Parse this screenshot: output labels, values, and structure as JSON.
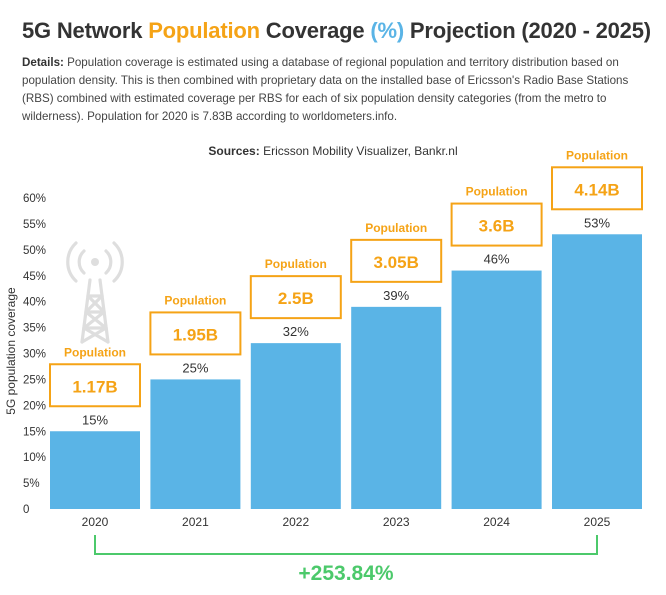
{
  "header": {
    "title_part1": "5G Network",
    "title_highlight": "Population",
    "title_part2": "Coverage",
    "title_percent": "(%)",
    "title_part3": "Projection (2020 - 2025)"
  },
  "details": {
    "label": "Details:",
    "text": "Population coverage is estimated using a database of regional population and territory distribution based on population density. This is then combined with proprietary data on the installed base of Ericsson's Radio Base Stations (RBS) combined with estimated coverage per RBS for each of six population density categories (from the metro to wilderness). Population for 2020 is 7.83B according to worldometers.info."
  },
  "sources": {
    "label": "Sources:",
    "text": "Ericsson Mobility Visualizer, Bankr.nl"
  },
  "colors": {
    "bar": "#5ab4e6",
    "accent": "#f5a316",
    "growth": "#4cc96b"
  },
  "icon": "radio-tower-icon",
  "chart_data": {
    "type": "bar",
    "ylabel": "5G population coverage",
    "categories": [
      "2020",
      "2021",
      "2022",
      "2023",
      "2024",
      "2025"
    ],
    "values": [
      15,
      25,
      32,
      39,
      46,
      53
    ],
    "value_labels": [
      "15%",
      "25%",
      "32%",
      "39%",
      "46%",
      "53%"
    ],
    "population_label": "Population",
    "populations": [
      "1.17B",
      "1.95B",
      "2.5B",
      "3.05B",
      "3.6B",
      "4.14B"
    ],
    "ylim": [
      0,
      60
    ],
    "yticks": [
      0,
      5,
      10,
      15,
      20,
      25,
      30,
      35,
      40,
      45,
      50,
      55,
      60
    ],
    "ytick_labels": [
      "0",
      "5%",
      "10%",
      "15%",
      "20%",
      "25%",
      "30%",
      "35%",
      "40%",
      "45%",
      "50%",
      "55%",
      "60%"
    ],
    "growth_label": "+253.84%",
    "grid": false
  }
}
